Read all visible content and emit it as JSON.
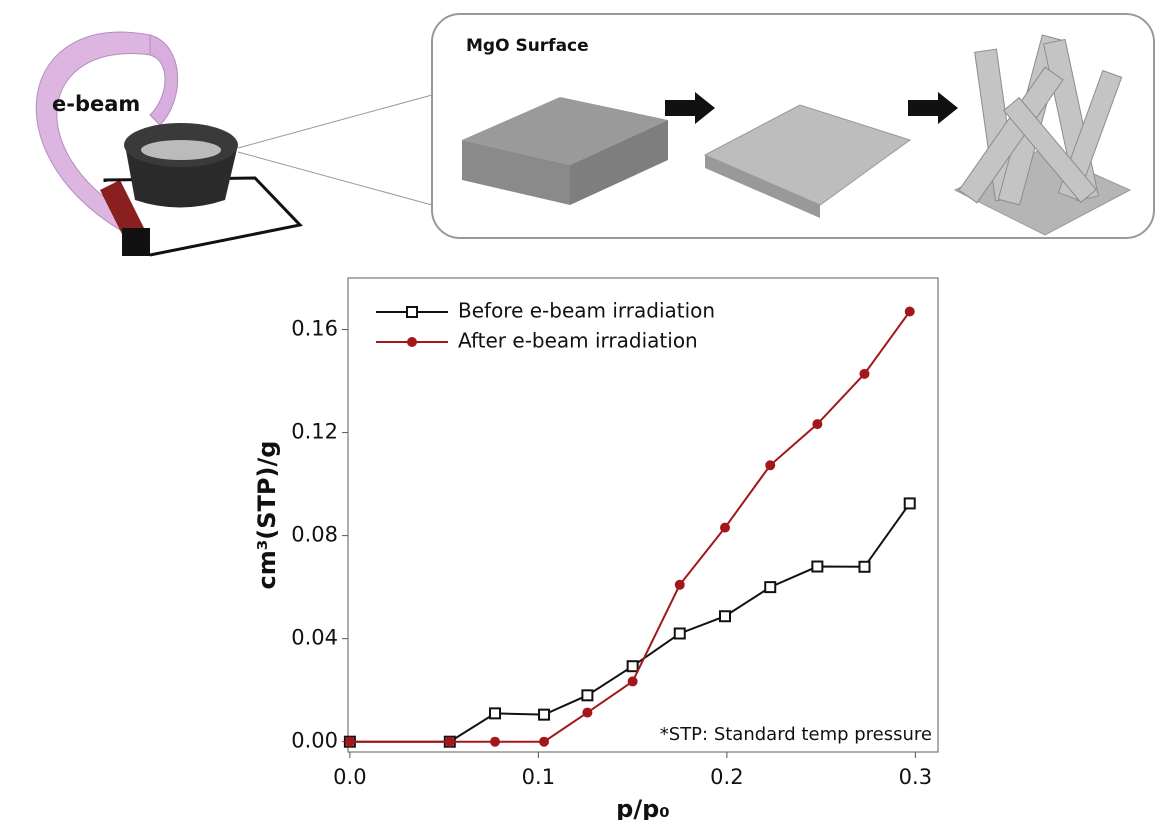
{
  "schematic": {
    "beam_label": "e-beam",
    "surface_label": "MgO Surface"
  },
  "chart_data": {
    "type": "line",
    "x_label": "p/p₀",
    "y_label": "cm³(STP)/g",
    "annotation": "*STP: Standard temp pressure",
    "x": [
      0,
      0.053,
      0.077,
      0.103,
      0.126,
      0.15,
      0.175,
      0.199,
      0.223,
      0.248,
      0.273,
      0.297
    ],
    "series": [
      {
        "name": "Before e-beam irradiation",
        "color": "#111111",
        "marker": "square",
        "values": [
          0,
          0,
          0.011,
          0.0105,
          0.018,
          0.0293,
          0.042,
          0.0487,
          0.06,
          0.068,
          0.0679,
          0.0925
        ]
      },
      {
        "name": "After e-beam irradiation",
        "color": "#a3171c",
        "marker": "circle",
        "values": [
          0,
          0,
          0,
          0,
          0.0113,
          0.0234,
          0.0609,
          0.0831,
          0.1073,
          0.1233,
          0.1428,
          0.167
        ]
      }
    ],
    "xlim": [
      -0.001,
      0.312
    ],
    "ylim": [
      -0.004,
      0.18
    ],
    "xticks": [
      {
        "value": 0,
        "label": "0.0"
      },
      0.1,
      0.2,
      0.3
    ],
    "yticks": [
      {
        "value": 0,
        "label": "0.00"
      },
      {
        "value": 0.04,
        "label": "0.04"
      },
      {
        "value": 0.08,
        "label": "0.08"
      },
      {
        "value": 0.12,
        "label": "0.12"
      },
      {
        "value": 0.16,
        "label": "0.16"
      }
    ],
    "legend": "upper left",
    "grid": false
  }
}
